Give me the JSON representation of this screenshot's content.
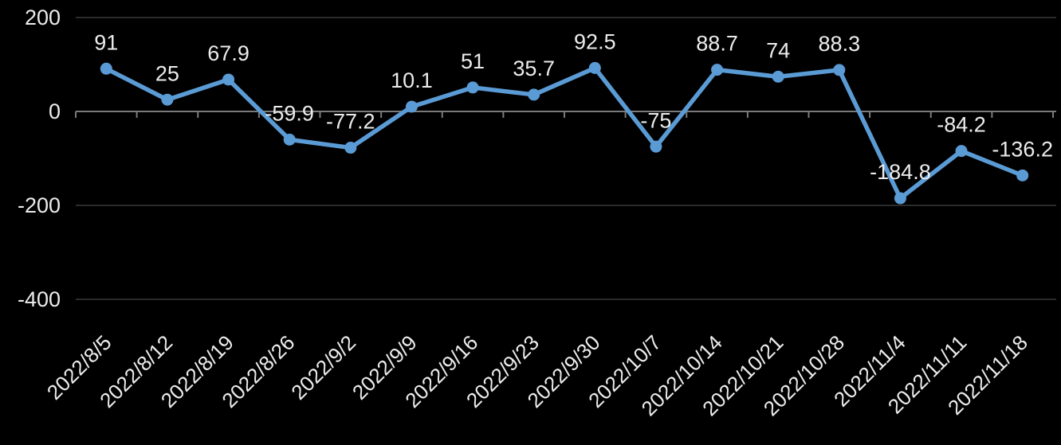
{
  "chart_data": {
    "type": "line",
    "title": "",
    "categories": [
      "2022/8/5",
      "2022/8/12",
      "2022/8/19",
      "2022/8/26",
      "2022/9/2",
      "2022/9/9",
      "2022/9/16",
      "2022/9/23",
      "2022/9/30",
      "2022/10/7",
      "2022/10/14",
      "2022/10/21",
      "2022/10/28",
      "2022/11/4",
      "2022/11/11",
      "2022/11/18"
    ],
    "series": [
      {
        "values": [
          91,
          25,
          67.9,
          -59.9,
          -77.2,
          10.1,
          51,
          35.7,
          92.5,
          -75,
          88.7,
          74,
          88.3,
          -184.8,
          -84.2,
          -136.2
        ]
      }
    ],
    "data_labels": [
      "91",
      "25",
      "67.9",
      "-59.9",
      "-77.2",
      "10.1",
      "51",
      "35.7",
      "92.5",
      "-75",
      "88.7",
      "74",
      "88.3",
      "-184.8",
      "-84.2",
      "-136.2"
    ],
    "xlabel": "",
    "ylabel": "",
    "y_axis": {
      "tick_labels": [
        "200",
        "0",
        "-200",
        "-400"
      ],
      "tick_values": [
        200,
        0,
        -200,
        -400
      ],
      "min": -400,
      "max": 200
    },
    "x_axis": {
      "label_rotation_deg": 45,
      "tick_marks": "outside"
    },
    "grid": true,
    "legend": "none",
    "marker": "circle",
    "colors": {
      "background": "#000000",
      "line": "#5B9BD5",
      "gridline": "#2B2B2B",
      "axis": "#7A7A7A",
      "text": "#ECECEC"
    }
  }
}
